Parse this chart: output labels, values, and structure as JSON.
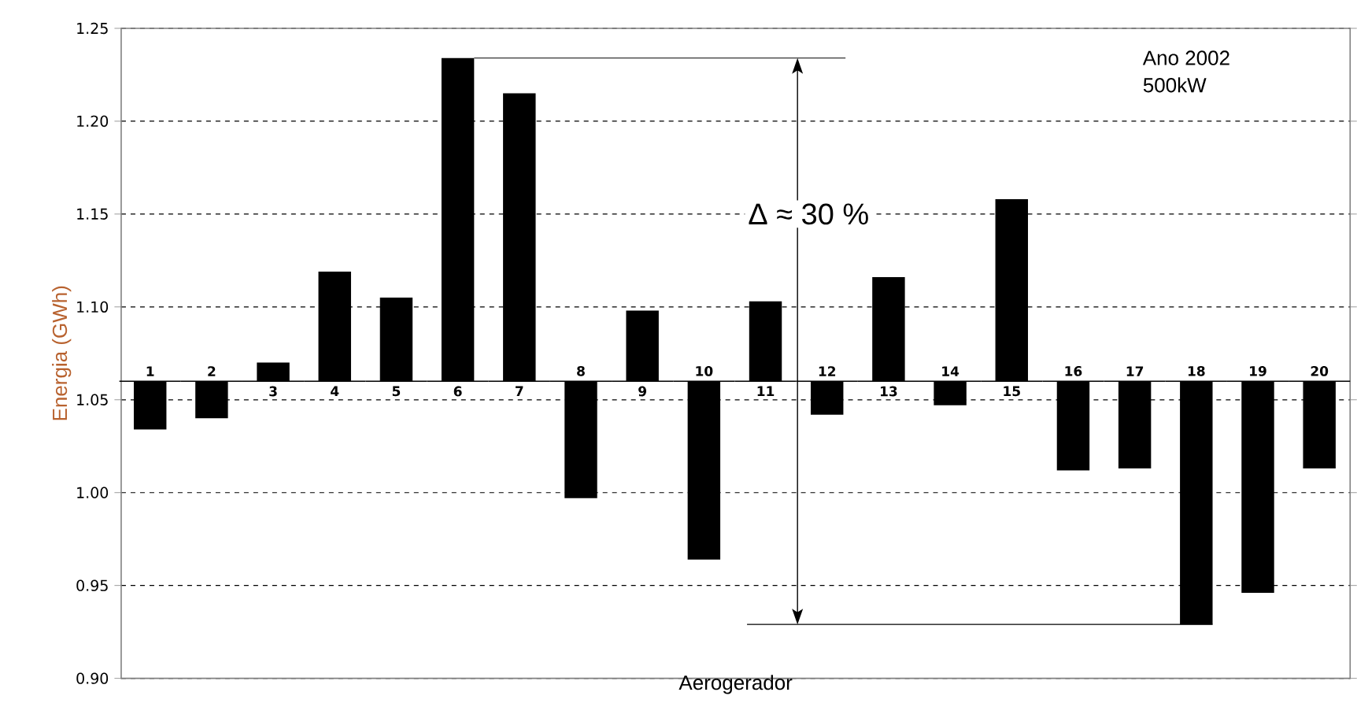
{
  "chart_data": {
    "type": "bar",
    "xlabel": "Aerogerador",
    "ylabel": "Energia (GWh)",
    "categories": [
      "1",
      "2",
      "3",
      "4",
      "5",
      "6",
      "7",
      "8",
      "9",
      "10",
      "11",
      "12",
      "13",
      "14",
      "15",
      "16",
      "17",
      "18",
      "19",
      "20"
    ],
    "base": [
      1.06,
      1.06,
      1.06,
      1.06,
      1.06,
      1.06,
      1.06,
      1.06,
      1.06,
      1.06,
      1.06,
      1.06,
      1.06,
      1.06,
      1.06,
      1.06,
      1.06,
      1.06,
      1.06,
      1.06
    ],
    "values": [
      -0.026,
      -0.02,
      0.01,
      0.059,
      0.045,
      0.174,
      0.155,
      -0.063,
      0.038,
      -0.096,
      0.043,
      -0.018,
      0.056,
      -0.013,
      0.098,
      -0.048,
      -0.047,
      -0.131,
      -0.114,
      -0.047
    ],
    "color": "#000000",
    "ylim": [
      0.9,
      1.25
    ],
    "yticks": [
      {
        "value": 0.9,
        "label": "0.90"
      },
      0.95,
      {
        "value": 1.0,
        "label": "1.00"
      },
      1.05,
      {
        "value": 1.1,
        "label": "1.10"
      },
      1.15,
      {
        "value": 1.2,
        "label": "1.20"
      },
      1.25
    ],
    "grid": "y",
    "annotations": [
      "Δ ≈ 30 %",
      "Ano 2002",
      "500kW"
    ]
  }
}
